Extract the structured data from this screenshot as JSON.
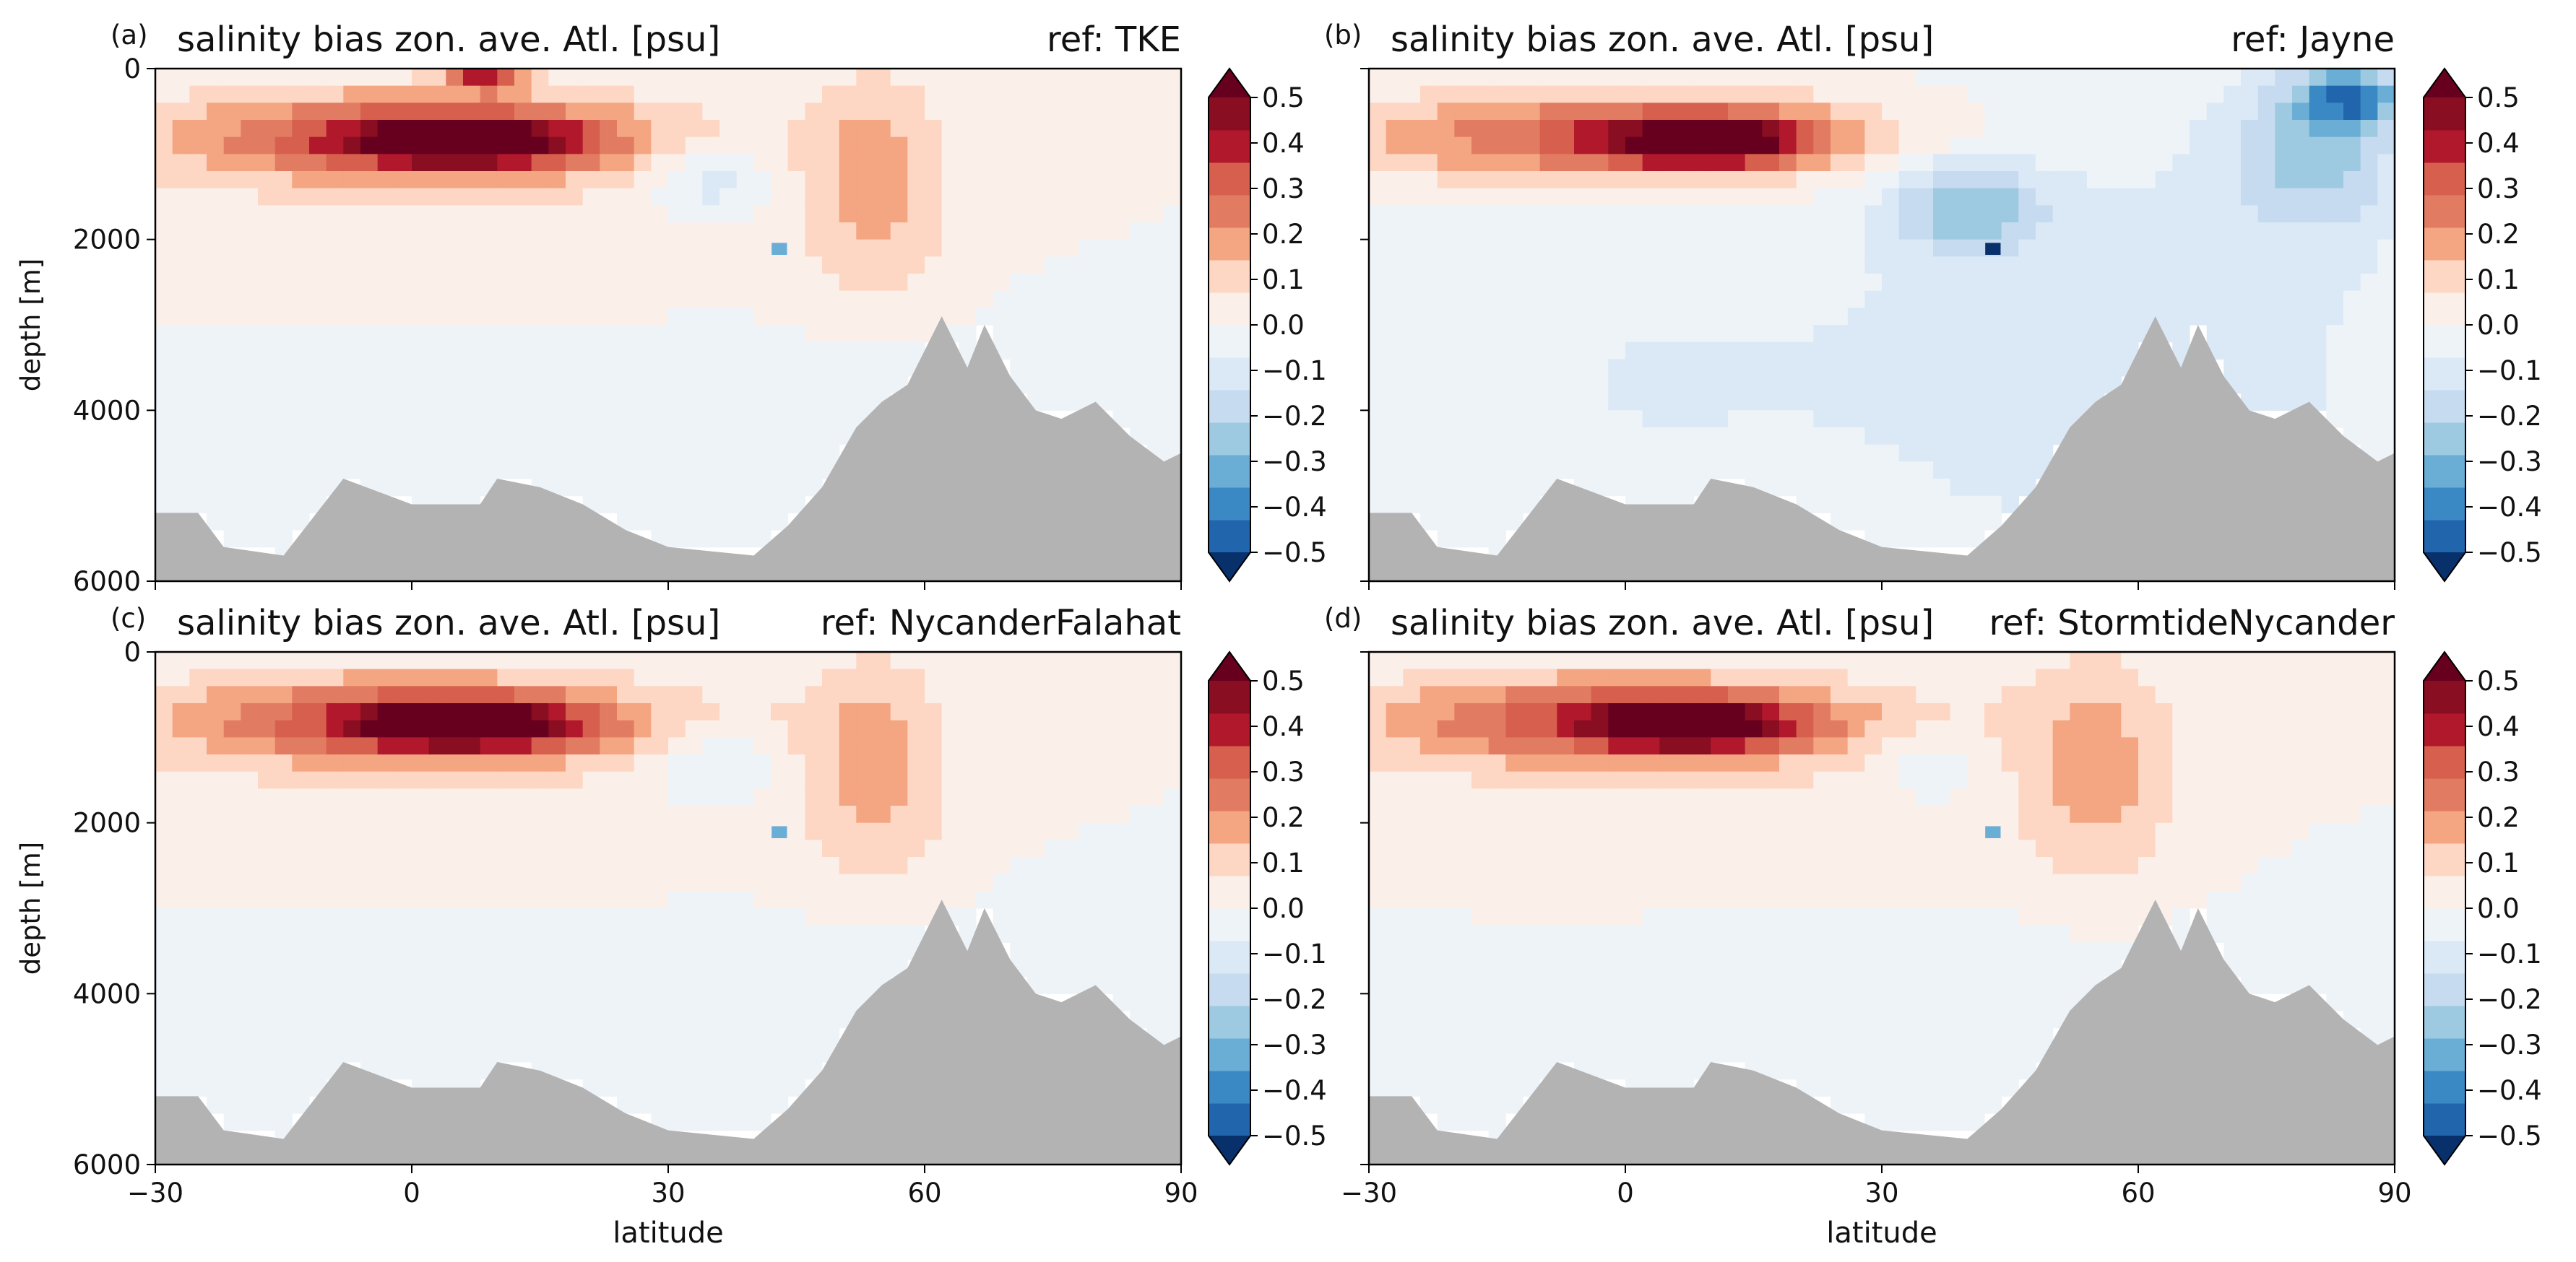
{
  "figure": {
    "title": "",
    "shared_labels": {
      "xlabel": "latitude",
      "ylabel": "depth [m]"
    }
  },
  "colors": {
    "bathymetry_fill": "#b3b3b3",
    "cmap_RdBu_r": [
      "#08306b",
      "#2166ac",
      "#3a89c4",
      "#6aaed6",
      "#9ecae1",
      "#c6dbef",
      "#dbe9f6",
      "#eef3f8",
      "#fbefe9",
      "#fdd7c4",
      "#f4a582",
      "#e17c62",
      "#d6604d",
      "#b2182b",
      "#8a0e22",
      "#67001f"
    ],
    "axes_frame": "#000000"
  },
  "chart_data": [
    {
      "type": "heatmap",
      "panel_label": "(a)",
      "title": "salinity bias zon. ave. Atl. [psu]",
      "ref_label": "ref: TKE",
      "xlabel": "",
      "ylabel": "depth [m]",
      "xlim": [
        -30,
        90
      ],
      "ylim": [
        6000,
        0
      ],
      "xticks": [
        -30,
        0,
        30,
        60,
        90
      ],
      "xtick_labels_shown": false,
      "yticks": [
        0,
        2000,
        4000,
        6000
      ],
      "ytick_labels_shown": true,
      "colorbar": {
        "min": -0.5,
        "max": 0.5,
        "step": 0.05,
        "ticks": [
          0.5,
          0.4,
          0.3,
          0.2,
          0.1,
          0.0,
          -0.1,
          -0.2,
          -0.3,
          -0.4,
          -0.5
        ],
        "tick_labels": [
          "0.5",
          "0.4",
          "0.3",
          "0.2",
          "0.1",
          "0.0",
          "−0.1",
          "−0.2",
          "−0.3",
          "−0.4",
          "−0.5"
        ],
        "extend": "both"
      },
      "field_features": [
        {
          "lat": [
            -28,
            28
          ],
          "depth": [
            300,
            1300
          ],
          "value": 0.3
        },
        {
          "lat": [
            -5,
            18
          ],
          "depth": [
            600,
            1100
          ],
          "value": 0.4
        },
        {
          "lat": [
            5,
            12
          ],
          "depth": [
            50,
            250
          ],
          "value": 0.4
        },
        {
          "lat": [
            -30,
            40
          ],
          "depth": [
            1300,
            2900
          ],
          "value": 0.05
        },
        {
          "lat": [
            46,
            62
          ],
          "depth": [
            100,
            2600
          ],
          "value": 0.15
        },
        {
          "lat": [
            28,
            42
          ],
          "depth": [
            900,
            1700
          ],
          "value": -0.12
        },
        {
          "lat": [
            -30,
            90
          ],
          "depth": [
            3300,
            5800
          ],
          "value": -0.06
        }
      ],
      "anomaly": {
        "lat": 43,
        "depth": 2100,
        "value": -0.3
      },
      "bathymetry_depth": [
        [
          -30,
          5200
        ],
        [
          -25,
          5200
        ],
        [
          -22,
          5600
        ],
        [
          -15,
          5700
        ],
        [
          -8,
          4800
        ],
        [
          0,
          5100
        ],
        [
          8,
          5100
        ],
        [
          10,
          4800
        ],
        [
          15,
          4900
        ],
        [
          20,
          5100
        ],
        [
          25,
          5400
        ],
        [
          30,
          5600
        ],
        [
          40,
          5700
        ],
        [
          44,
          5350
        ],
        [
          48,
          4900
        ],
        [
          52,
          4200
        ],
        [
          55,
          3900
        ],
        [
          58,
          3700
        ],
        [
          60,
          3300
        ],
        [
          62,
          2900
        ],
        [
          65,
          3500
        ],
        [
          67,
          3000
        ],
        [
          70,
          3600
        ],
        [
          73,
          4000
        ],
        [
          76,
          4100
        ],
        [
          80,
          3900
        ],
        [
          84,
          4300
        ],
        [
          88,
          4600
        ],
        [
          90,
          4500
        ]
      ]
    },
    {
      "type": "heatmap",
      "panel_label": "(b)",
      "title": "salinity bias zon. ave. Atl. [psu]",
      "ref_label": "ref: Jayne",
      "xlabel": "",
      "ylabel": "",
      "xlim": [
        -30,
        90
      ],
      "ylim": [
        6000,
        0
      ],
      "xticks": [
        -30,
        0,
        30,
        60,
        90
      ],
      "xtick_labels_shown": false,
      "yticks": [
        0,
        2000,
        4000,
        6000
      ],
      "ytick_labels_shown": false,
      "colorbar": {
        "min": -0.5,
        "max": 0.5,
        "step": 0.05,
        "ticks": [
          0.5,
          0.4,
          0.3,
          0.2,
          0.1,
          0.0,
          -0.1,
          -0.2,
          -0.3,
          -0.4,
          -0.5
        ],
        "tick_labels": [
          "0.5",
          "0.4",
          "0.3",
          "0.2",
          "0.1",
          "0.0",
          "−0.1",
          "−0.2",
          "−0.3",
          "−0.4",
          "−0.5"
        ],
        "extend": "both"
      },
      "field_features": [
        {
          "lat": [
            -28,
            28
          ],
          "depth": [
            300,
            1300
          ],
          "value": 0.3
        },
        {
          "lat": [
            0,
            20
          ],
          "depth": [
            600,
            1100
          ],
          "value": 0.4
        },
        {
          "lat": [
            -30,
            30
          ],
          "depth": [
            1400,
            6000
          ],
          "value": -0.06
        },
        {
          "lat": [
            30,
            90
          ],
          "depth": [
            800,
            6000
          ],
          "value": -0.1
        },
        {
          "lat": [
            32,
            48
          ],
          "depth": [
            1100,
            2100
          ],
          "value": -0.2
        },
        {
          "lat": [
            72,
            90
          ],
          "depth": [
            0,
            1800
          ],
          "value": -0.2
        },
        {
          "lat": [
            80,
            90
          ],
          "depth": [
            50,
            600
          ],
          "value": -0.3
        }
      ],
      "anomaly": {
        "lat": 43,
        "depth": 2100,
        "value": -0.5
      },
      "bathymetry_depth": [
        [
          -30,
          5200
        ],
        [
          -25,
          5200
        ],
        [
          -22,
          5600
        ],
        [
          -15,
          5700
        ],
        [
          -8,
          4800
        ],
        [
          0,
          5100
        ],
        [
          8,
          5100
        ],
        [
          10,
          4800
        ],
        [
          15,
          4900
        ],
        [
          20,
          5100
        ],
        [
          25,
          5400
        ],
        [
          30,
          5600
        ],
        [
          40,
          5700
        ],
        [
          44,
          5350
        ],
        [
          48,
          4900
        ],
        [
          52,
          4200
        ],
        [
          55,
          3900
        ],
        [
          58,
          3700
        ],
        [
          60,
          3300
        ],
        [
          62,
          2900
        ],
        [
          65,
          3500
        ],
        [
          67,
          3000
        ],
        [
          70,
          3600
        ],
        [
          73,
          4000
        ],
        [
          76,
          4100
        ],
        [
          80,
          3900
        ],
        [
          84,
          4300
        ],
        [
          88,
          4600
        ],
        [
          90,
          4500
        ]
      ]
    },
    {
      "type": "heatmap",
      "panel_label": "(c)",
      "title": "salinity bias zon. ave. Atl. [psu]",
      "ref_label": "ref: NycanderFalahat",
      "xlabel": "latitude",
      "ylabel": "depth [m]",
      "xlim": [
        -30,
        90
      ],
      "ylim": [
        6000,
        0
      ],
      "xticks": [
        -30,
        0,
        30,
        60,
        90
      ],
      "xtick_labels_shown": true,
      "yticks": [
        0,
        2000,
        4000,
        6000
      ],
      "ytick_labels_shown": true,
      "colorbar": {
        "min": -0.5,
        "max": 0.5,
        "step": 0.05,
        "ticks": [
          0.5,
          0.4,
          0.3,
          0.2,
          0.1,
          0.0,
          -0.1,
          -0.2,
          -0.3,
          -0.4,
          -0.5
        ],
        "tick_labels": [
          "0.5",
          "0.4",
          "0.3",
          "0.2",
          "0.1",
          "0.0",
          "−0.1",
          "−0.2",
          "−0.3",
          "−0.4",
          "−0.5"
        ],
        "extend": "both"
      },
      "field_features": [
        {
          "lat": [
            -28,
            28
          ],
          "depth": [
            300,
            1300
          ],
          "value": 0.3
        },
        {
          "lat": [
            -5,
            18
          ],
          "depth": [
            600,
            1100
          ],
          "value": 0.35
        },
        {
          "lat": [
            -30,
            40
          ],
          "depth": [
            1300,
            2900
          ],
          "value": 0.05
        },
        {
          "lat": [
            46,
            62
          ],
          "depth": [
            100,
            2600
          ],
          "value": 0.15
        },
        {
          "lat": [
            28,
            42
          ],
          "depth": [
            900,
            1700
          ],
          "value": -0.1
        },
        {
          "lat": [
            -30,
            90
          ],
          "depth": [
            3300,
            5800
          ],
          "value": -0.06
        }
      ],
      "anomaly": {
        "lat": 43,
        "depth": 2100,
        "value": -0.3
      },
      "bathymetry_depth": [
        [
          -30,
          5200
        ],
        [
          -25,
          5200
        ],
        [
          -22,
          5600
        ],
        [
          -15,
          5700
        ],
        [
          -8,
          4800
        ],
        [
          0,
          5100
        ],
        [
          8,
          5100
        ],
        [
          10,
          4800
        ],
        [
          15,
          4900
        ],
        [
          20,
          5100
        ],
        [
          25,
          5400
        ],
        [
          30,
          5600
        ],
        [
          40,
          5700
        ],
        [
          44,
          5350
        ],
        [
          48,
          4900
        ],
        [
          52,
          4200
        ],
        [
          55,
          3900
        ],
        [
          58,
          3700
        ],
        [
          60,
          3300
        ],
        [
          62,
          2900
        ],
        [
          65,
          3500
        ],
        [
          67,
          3000
        ],
        [
          70,
          3600
        ],
        [
          73,
          4000
        ],
        [
          76,
          4100
        ],
        [
          80,
          3900
        ],
        [
          84,
          4300
        ],
        [
          88,
          4600
        ],
        [
          90,
          4500
        ]
      ]
    },
    {
      "type": "heatmap",
      "panel_label": "(d)",
      "title": "salinity bias zon. ave. Atl. [psu]",
      "ref_label": "ref: StormtideNycander",
      "xlabel": "latitude",
      "ylabel": "",
      "xlim": [
        -30,
        90
      ],
      "ylim": [
        6000,
        0
      ],
      "xticks": [
        -30,
        0,
        30,
        60,
        90
      ],
      "xtick_labels_shown": true,
      "yticks": [
        0,
        2000,
        4000,
        6000
      ],
      "ytick_labels_shown": false,
      "colorbar": {
        "min": -0.5,
        "max": 0.5,
        "step": 0.05,
        "ticks": [
          0.5,
          0.4,
          0.3,
          0.2,
          0.1,
          0.0,
          -0.1,
          -0.2,
          -0.3,
          -0.4,
          -0.5
        ],
        "tick_labels": [
          "0.5",
          "0.4",
          "0.3",
          "0.2",
          "0.1",
          "0.0",
          "−0.1",
          "−0.2",
          "−0.3",
          "−0.4",
          "−0.5"
        ],
        "extend": "both"
      },
      "field_features": [
        {
          "lat": [
            -28,
            28
          ],
          "depth": [
            300,
            1300
          ],
          "value": 0.3
        },
        {
          "lat": [
            -2,
            18
          ],
          "depth": [
            600,
            1100
          ],
          "value": 0.38
        },
        {
          "lat": [
            -30,
            40
          ],
          "depth": [
            1300,
            2900
          ],
          "value": 0.05
        },
        {
          "lat": [
            46,
            64
          ],
          "depth": [
            100,
            2600
          ],
          "value": 0.15
        },
        {
          "lat": [
            30,
            42
          ],
          "depth": [
            900,
            1700
          ],
          "value": -0.08
        },
        {
          "lat": [
            -30,
            90
          ],
          "depth": [
            3300,
            5800
          ],
          "value": -0.05
        }
      ],
      "anomaly": {
        "lat": 43,
        "depth": 2100,
        "value": -0.3
      },
      "bathymetry_depth": [
        [
          -30,
          5200
        ],
        [
          -25,
          5200
        ],
        [
          -22,
          5600
        ],
        [
          -15,
          5700
        ],
        [
          -8,
          4800
        ],
        [
          0,
          5100
        ],
        [
          8,
          5100
        ],
        [
          10,
          4800
        ],
        [
          15,
          4900
        ],
        [
          20,
          5100
        ],
        [
          25,
          5400
        ],
        [
          30,
          5600
        ],
        [
          40,
          5700
        ],
        [
          44,
          5350
        ],
        [
          48,
          4900
        ],
        [
          52,
          4200
        ],
        [
          55,
          3900
        ],
        [
          58,
          3700
        ],
        [
          60,
          3300
        ],
        [
          62,
          2900
        ],
        [
          65,
          3500
        ],
        [
          67,
          3000
        ],
        [
          70,
          3600
        ],
        [
          73,
          4000
        ],
        [
          76,
          4100
        ],
        [
          80,
          3900
        ],
        [
          84,
          4300
        ],
        [
          88,
          4600
        ],
        [
          90,
          4500
        ]
      ]
    }
  ]
}
